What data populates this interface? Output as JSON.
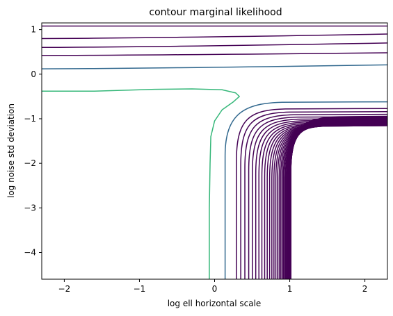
{
  "chart_data": {
    "type": "contour",
    "title": "contour marginal likelihood",
    "xlabel": "log ell horizontal scale",
    "ylabel": "log noise std deviation",
    "xlim": [
      -2.3,
      2.3
    ],
    "ylim": [
      -4.6,
      1.15
    ],
    "x_ticks": [
      {
        "value": -2,
        "label": "−2"
      },
      {
        "value": -1,
        "label": "−1"
      },
      {
        "value": 0,
        "label": "0"
      },
      {
        "value": 1,
        "label": "1"
      },
      {
        "value": 2,
        "label": "2"
      }
    ],
    "y_ticks": [
      {
        "value": 1,
        "label": "1"
      },
      {
        "value": 0,
        "label": "0"
      },
      {
        "value": -1,
        "label": "−1"
      },
      {
        "value": -2,
        "label": "−2"
      },
      {
        "value": -3,
        "label": "−3"
      },
      {
        "value": -4,
        "label": "−4"
      }
    ],
    "colors": {
      "low": "#440154",
      "mid_low": "#31688e",
      "mid_high": "#35b779"
    },
    "contours": {
      "top_band_levels": [
        {
          "y_left": 1.08,
          "y_right": 1.08,
          "color": "low"
        },
        {
          "y_left": 0.8,
          "y_right": 0.9,
          "color": "low"
        },
        {
          "y_left": 0.6,
          "y_right": 0.7,
          "color": "low"
        },
        {
          "y_left": 0.42,
          "y_right": 0.48,
          "color": "low"
        },
        {
          "y_left": 0.12,
          "y_right": 0.21,
          "color": "mid_low"
        }
      ],
      "inner_level": {
        "color": "mid_high",
        "points": [
          [
            -2.3,
            -0.38
          ],
          [
            -1.6,
            -0.38
          ],
          [
            -0.8,
            -0.34
          ],
          [
            -0.3,
            -0.33
          ],
          [
            0.1,
            -0.35
          ],
          [
            0.28,
            -0.42
          ],
          [
            0.33,
            -0.5
          ],
          [
            0.25,
            -0.62
          ],
          [
            0.1,
            -0.8
          ],
          [
            0.0,
            -1.05
          ],
          [
            -0.05,
            -1.4
          ],
          [
            -0.06,
            -2.0
          ],
          [
            -0.07,
            -3.0
          ],
          [
            -0.07,
            -4.6
          ]
        ]
      },
      "corner_levels": {
        "count": 40,
        "first": {
          "color": "mid_low",
          "x_bottom": 0.14,
          "x_knee": 0.55,
          "y_right": -0.63
        },
        "rest_color": "low",
        "x_bottom_start": 0.29,
        "x_bottom_step": 0.06,
        "y_right_start": -0.78,
        "y_right_step": 0.019
      }
    }
  }
}
